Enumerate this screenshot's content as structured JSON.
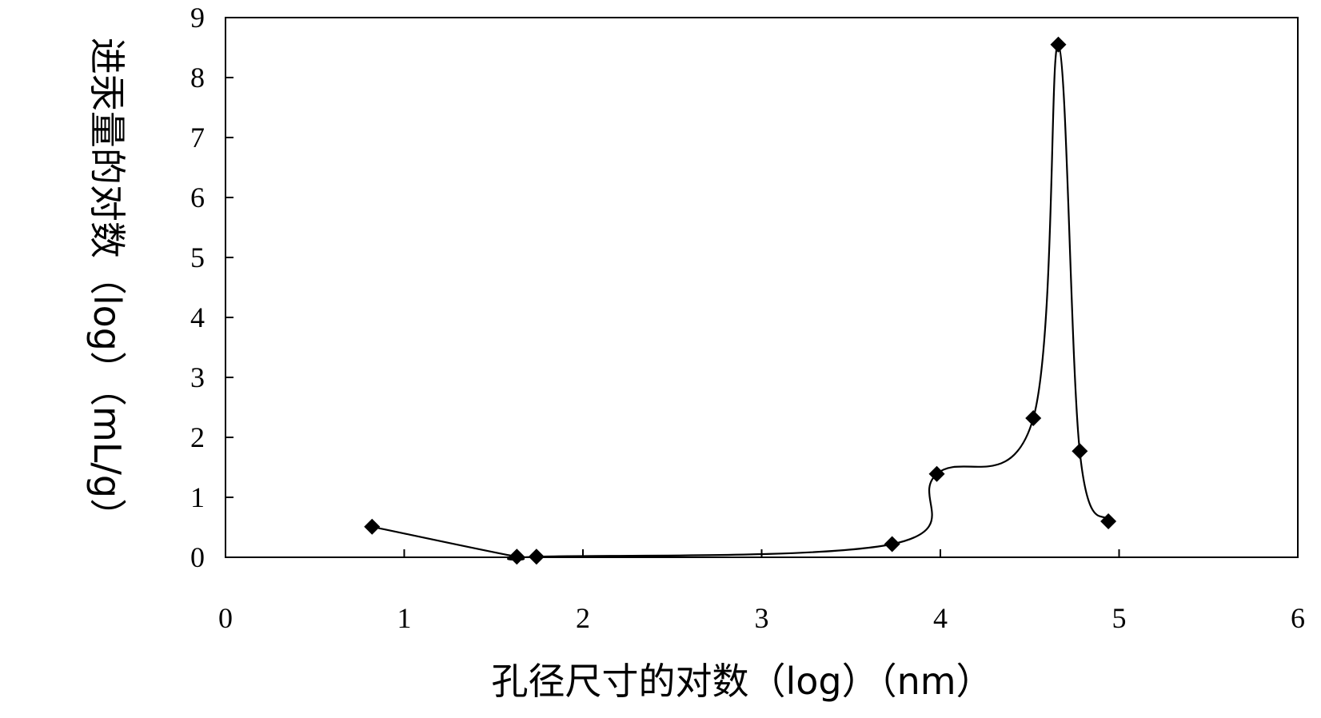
{
  "chart_data": {
    "type": "line",
    "title": "",
    "xlabel": "孔径尺寸的对数（log）（nm）",
    "ylabel": "进汞量的对数（log）（mL/g）",
    "xlim": [
      0,
      6
    ],
    "ylim": [
      0,
      9
    ],
    "x_ticks": [
      "0",
      "1",
      "2",
      "3",
      "4",
      "5",
      "6"
    ],
    "y_ticks": [
      "0",
      "1",
      "2",
      "3",
      "4",
      "5",
      "6",
      "7",
      "8",
      "9"
    ],
    "grid": false,
    "legend": "none",
    "series": [
      {
        "marker": "diamond",
        "color": "#000000",
        "smooth": true,
        "x": [
          0.82,
          1.63,
          1.74,
          3.73,
          3.98,
          4.52,
          4.66,
          4.78,
          4.94
        ],
        "y": [
          0.51,
          0.01,
          0.01,
          0.22,
          1.39,
          2.32,
          8.55,
          1.77,
          0.6
        ]
      }
    ]
  }
}
